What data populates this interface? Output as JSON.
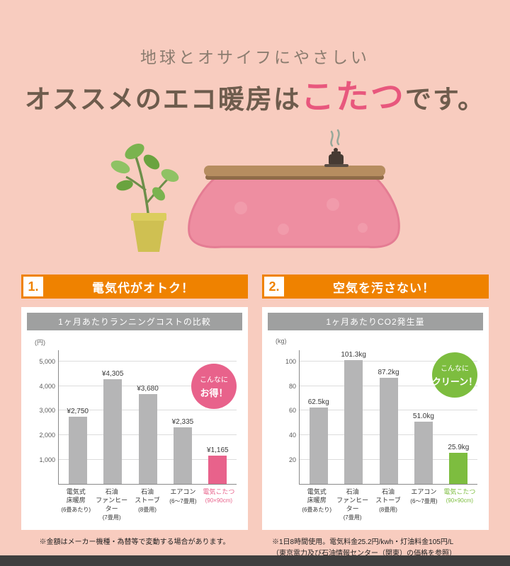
{
  "header": {
    "subtitle": "地球とオサイフにやさしい",
    "title_pre": "オススメのエコ暖房は",
    "title_highlight": "こたつ",
    "title_post": "です。"
  },
  "sections": [
    {
      "number": "1.",
      "label": "電気代がオトク！"
    },
    {
      "number": "2.",
      "label": "空気を汚さない！"
    }
  ],
  "chart_data": [
    {
      "type": "bar",
      "title": "1ヶ月あたりランニングコストの比較",
      "unit_label": "(円)",
      "ylim": [
        0,
        5500
      ],
      "grid": true,
      "yticks_bottom_up": [
        "1,000",
        "2,000",
        "3,000",
        "4,000",
        "5,000"
      ],
      "categories": [
        {
          "name": "電気式\n床暖房",
          "note": "(6畳あたり)"
        },
        {
          "name": "石油\nファンヒーター",
          "note": "(7畳用)"
        },
        {
          "name": "石油\nストーブ",
          "note": "(8畳用)"
        },
        {
          "name": "エアコン",
          "note": "(6〜7畳用)"
        },
        {
          "name": "電気こたつ",
          "note": "(90×90cm)"
        }
      ],
      "values": [
        2750,
        4305,
        3680,
        2335,
        1165
      ],
      "value_labels": [
        "¥2,750",
        "¥4,305",
        "¥3,680",
        "¥2,335",
        "¥1,165"
      ],
      "highlight_index": 4,
      "colors": {
        "bar": "#b5b5b6",
        "highlight": "#e8628b"
      },
      "bubble": {
        "line1": "こんなに",
        "line2": "お得！",
        "color": "#e8628b"
      },
      "footnote": "※金額はメーカー機種・為替等で変動する場合があります。"
    },
    {
      "type": "bar",
      "title": "1ヶ月あたりCO2発生量",
      "unit_label": "(kg)",
      "ylim": [
        0,
        110
      ],
      "grid": true,
      "yticks_bottom_up": [
        "20",
        "40",
        "60",
        "80",
        "100"
      ],
      "categories": [
        {
          "name": "電気式\n床暖房",
          "note": "(6畳あたり)"
        },
        {
          "name": "石油\nファンヒーター",
          "note": "(7畳用)"
        },
        {
          "name": "石油\nストーブ",
          "note": "(8畳用)"
        },
        {
          "name": "エアコン",
          "note": "(6〜7畳用)"
        },
        {
          "name": "電気こたつ",
          "note": "(90×90cm)"
        }
      ],
      "values": [
        62.5,
        101.3,
        87.2,
        51.0,
        25.9
      ],
      "value_labels": [
        "62.5kg",
        "101.3kg",
        "87.2kg",
        "51.0kg",
        "25.9kg"
      ],
      "highlight_index": 4,
      "colors": {
        "bar": "#b5b5b6",
        "highlight": "#7dbd3f"
      },
      "bubble": {
        "line1": "こんなに",
        "line2": "クリーン！",
        "color": "#7dbd3f"
      },
      "footnote": "※1日8時間使用。電気料金25.2円/kwh・灯油料金105円/L\n（東京電力及び石油情報センター（関東）の価格を参照）"
    }
  ],
  "illustration": {
    "icons": [
      "plant-icon",
      "kotatsu-icon",
      "teapot-steam-icon"
    ]
  },
  "layout_colors": {
    "background": "#f8ccbf",
    "banner_orange": "#ef8200",
    "panel_title_gray": "#9fa0a0",
    "title_highlight_pink": "#e8577d"
  }
}
